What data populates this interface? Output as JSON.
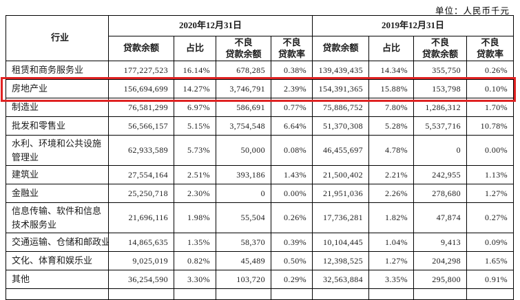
{
  "unit_label": "单位：人民币千元",
  "table": {
    "industry_header": "行业",
    "periods": [
      "2020年12月31日",
      "2019年12月31日"
    ],
    "sub_headers": {
      "loan_balance": "贷款余额",
      "proportion": "占比",
      "npl_line1": "不良",
      "npl_balance_line2": "贷款余额",
      "npl_ratio_line2": "贷款率"
    },
    "highlight_color": "#e02222",
    "rows": [
      {
        "industry": "租赁和商务服务业",
        "highlighted": false,
        "tall": false,
        "y2020": {
          "loan": "177,227,523",
          "pct": "16.14%",
          "npl": "678,285",
          "npl_pct": "0.38%"
        },
        "y2019": {
          "loan": "139,439,435",
          "pct": "14.34%",
          "npl": "355,750",
          "npl_pct": "0.26%"
        }
      },
      {
        "industry": "房地产业",
        "highlighted": true,
        "tall": false,
        "y2020": {
          "loan": "156,694,699",
          "pct": "14.27%",
          "npl": "3,746,791",
          "npl_pct": "2.39%"
        },
        "y2019": {
          "loan": "154,391,365",
          "pct": "15.88%",
          "npl": "153,798",
          "npl_pct": "0.10%"
        }
      },
      {
        "industry": "制造业",
        "highlighted": false,
        "tall": false,
        "y2020": {
          "loan": "76,581,299",
          "pct": "6.97%",
          "npl": "586,691",
          "npl_pct": "0.77%"
        },
        "y2019": {
          "loan": "75,886,752",
          "pct": "7.80%",
          "npl": "1,286,312",
          "npl_pct": "1.70%"
        }
      },
      {
        "industry": "批发和零售业",
        "highlighted": false,
        "tall": false,
        "y2020": {
          "loan": "56,566,157",
          "pct": "5.15%",
          "npl": "3,754,548",
          "npl_pct": "6.64%"
        },
        "y2019": {
          "loan": "51,370,308",
          "pct": "5.28%",
          "npl": "5,537,716",
          "npl_pct": "10.78%"
        }
      },
      {
        "industry": "水利、环境和公共设施管理业",
        "highlighted": false,
        "tall": true,
        "y2020": {
          "loan": "62,933,589",
          "pct": "5.73%",
          "npl": "50,000",
          "npl_pct": "0.08%"
        },
        "y2019": {
          "loan": "46,455,697",
          "pct": "4.78%",
          "npl": "0",
          "npl_pct": "0.00%"
        }
      },
      {
        "industry": "建筑业",
        "highlighted": false,
        "tall": false,
        "y2020": {
          "loan": "27,554,164",
          "pct": "2.51%",
          "npl": "393,186",
          "npl_pct": "1.43%"
        },
        "y2019": {
          "loan": "21,500,402",
          "pct": "2.21%",
          "npl": "242,955",
          "npl_pct": "1.13%"
        }
      },
      {
        "industry": "金融业",
        "highlighted": false,
        "tall": false,
        "y2020": {
          "loan": "25,250,718",
          "pct": "2.30%",
          "npl": "0",
          "npl_pct": "0.00%"
        },
        "y2019": {
          "loan": "21,951,036",
          "pct": "2.26%",
          "npl": "278,680",
          "npl_pct": "1.27%"
        }
      },
      {
        "industry": "信息传输、软件和信息技术服务业",
        "highlighted": false,
        "tall": true,
        "y2020": {
          "loan": "21,696,116",
          "pct": "1.98%",
          "npl": "55,504",
          "npl_pct": "0.26%"
        },
        "y2019": {
          "loan": "17,736,281",
          "pct": "1.82%",
          "npl": "47,874",
          "npl_pct": "0.27%"
        }
      },
      {
        "industry": "交通运输、仓储和邮政业",
        "highlighted": false,
        "tall": false,
        "y2020": {
          "loan": "14,865,635",
          "pct": "1.35%",
          "npl": "58,370",
          "npl_pct": "0.39%"
        },
        "y2019": {
          "loan": "10,104,445",
          "pct": "1.04%",
          "npl": "9,413",
          "npl_pct": "0.09%"
        }
      },
      {
        "industry": "文化、体育和娱乐业",
        "highlighted": false,
        "tall": false,
        "y2020": {
          "loan": "9,025,019",
          "pct": "0.82%",
          "npl": "45,489",
          "npl_pct": "0.50%"
        },
        "y2019": {
          "loan": "12,398,525",
          "pct": "1.27%",
          "npl": "204,298",
          "npl_pct": "1.65%"
        }
      },
      {
        "industry": "其他",
        "highlighted": false,
        "tall": false,
        "y2020": {
          "loan": "36,254,590",
          "pct": "3.30%",
          "npl": "103,720",
          "npl_pct": "0.29%"
        },
        "y2019": {
          "loan": "32,563,884",
          "pct": "3.35%",
          "npl": "295,800",
          "npl_pct": "0.91%"
        }
      }
    ]
  }
}
